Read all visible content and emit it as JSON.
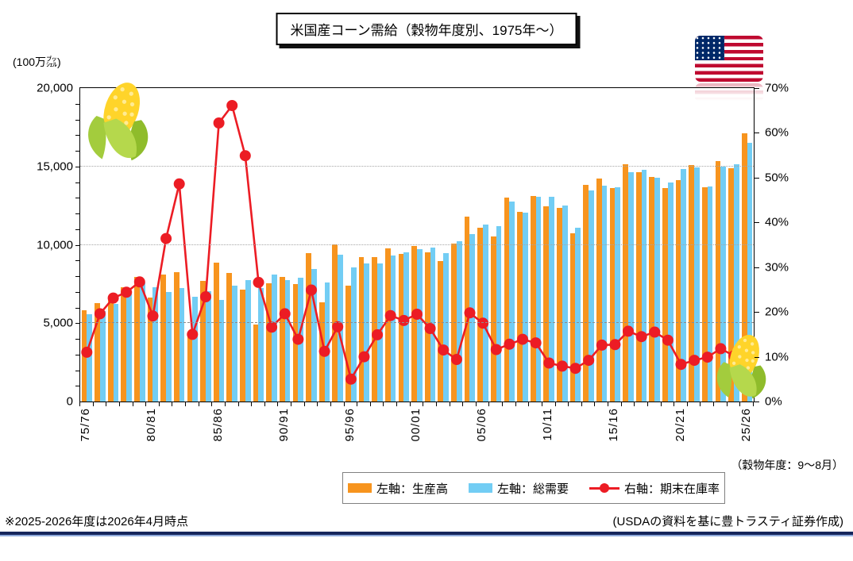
{
  "title": "米国産コーン需給（穀物年度別、1975年～）",
  "unit_label": "(100万㌴)",
  "crop_year_note": "（穀物年度：9～8月）",
  "footnote": "※2025-2026年度は2026年4月時点",
  "source": "(USDAの資料を基に豊トラスティ証券作成)",
  "legend": {
    "production": "左軸：生産高",
    "demand": "左軸：総需要",
    "stocks_ratio": "右軸：期末在庫率"
  },
  "colors": {
    "production_bar": "#F7941E",
    "demand_bar": "#72CDF4",
    "ratio_line": "#EC1C24",
    "bottom_rule": "#15255C"
  },
  "chart_data": {
    "type": "bar",
    "note": "dual-axis combo: two bar series on left axis, one line series on right axis",
    "categories": [
      "75/76",
      "76/77",
      "77/78",
      "78/79",
      "79/80",
      "80/81",
      "81/82",
      "82/83",
      "83/84",
      "84/85",
      "85/86",
      "86/87",
      "87/88",
      "88/89",
      "89/90",
      "90/91",
      "91/92",
      "92/93",
      "93/94",
      "94/95",
      "95/96",
      "96/97",
      "97/98",
      "98/99",
      "99/00",
      "00/01",
      "01/02",
      "02/03",
      "03/04",
      "04/05",
      "05/06",
      "06/07",
      "07/08",
      "08/09",
      "09/10",
      "10/11",
      "11/12",
      "12/13",
      "13/14",
      "14/15",
      "15/16",
      "16/17",
      "17/18",
      "18/19",
      "19/20",
      "20/21",
      "21/22",
      "22/23",
      "23/24",
      "24/25",
      "25/26"
    ],
    "series": [
      {
        "name": "左軸：生産高",
        "type": "bar",
        "axis": "left",
        "color": "#F7941E",
        "values": [
          5841,
          6289,
          6505,
          7268,
          7928,
          6639,
          8119,
          8235,
          4174,
          7674,
          8875,
          8226,
          7131,
          4929,
          7532,
          7934,
          7475,
          9477,
          6336,
          10051,
          7400,
          9233,
          9207,
          9759,
          9431,
          9915,
          9503,
          8967,
          10089,
          11806,
          11112,
          10531,
          13038,
          12092,
          13092,
          12447,
          12360,
          10755,
          13829,
          14216,
          13602,
          15148,
          14609,
          14340,
          13620,
          14111,
          15074,
          13651,
          15342,
          14867,
          17100
        ]
      },
      {
        "name": "左軸：総需要",
        "type": "bar",
        "axis": "left",
        "color": "#72CDF4",
        "values": [
          5570,
          5788,
          6205,
          6994,
          7604,
          7281,
          6975,
          7249,
          6691,
          7032,
          6495,
          7384,
          7754,
          7258,
          8120,
          7757,
          7915,
          8470,
          7620,
          9353,
          8548,
          8789,
          8791,
          9299,
          9515,
          9741,
          9816,
          9490,
          10232,
          10661,
          11268,
          11206,
          12738,
          12057,
          13065,
          13055,
          12528,
          11083,
          13454,
          13749,
          13663,
          14649,
          14798,
          14287,
          13964,
          14819,
          14956,
          13707,
          14967,
          15115,
          16500
        ]
      },
      {
        "name": "右軸：期末在庫率",
        "type": "line",
        "axis": "right",
        "color": "#EC1C24",
        "values": [
          11.0,
          19.6,
          23.1,
          24.4,
          26.7,
          19.1,
          36.4,
          48.6,
          15.0,
          23.4,
          62.2,
          66.1,
          54.9,
          26.6,
          16.6,
          19.6,
          13.9,
          24.9,
          11.2,
          16.7,
          5.0,
          10.0,
          14.9,
          19.2,
          18.1,
          19.5,
          16.3,
          11.5,
          9.4,
          19.8,
          17.5,
          11.6,
          12.8,
          13.9,
          13.1,
          8.6,
          7.9,
          7.4,
          9.2,
          12.6,
          12.7,
          15.7,
          14.5,
          15.5,
          13.7,
          8.3,
          9.2,
          9.9,
          11.8,
          10.2,
          13.3
        ]
      }
    ],
    "left_axis": {
      "label": "(100万㌴)",
      "min": 0,
      "max": 20000,
      "tick_step": 5000,
      "minor_tick_step": 1000,
      "tick_labels": [
        "0",
        "5,000",
        "10,000",
        "15,000",
        "20,000"
      ]
    },
    "right_axis": {
      "min": 0,
      "max": 70,
      "tick_step": 10,
      "unit": "%",
      "tick_labels": [
        "0%",
        "10%",
        "20%",
        "30%",
        "40%",
        "50%",
        "60%",
        "70%"
      ]
    },
    "x_axis": {
      "tick_label_every": 5,
      "labels_shown": [
        "75/76",
        "80/81",
        "85/86",
        "90/91",
        "95/96",
        "00/01",
        "05/06",
        "10/11",
        "15/16",
        "20/21",
        "25/26"
      ]
    },
    "gridlines_at": [
      5000,
      10000,
      15000
    ],
    "legend_position": "bottom"
  }
}
